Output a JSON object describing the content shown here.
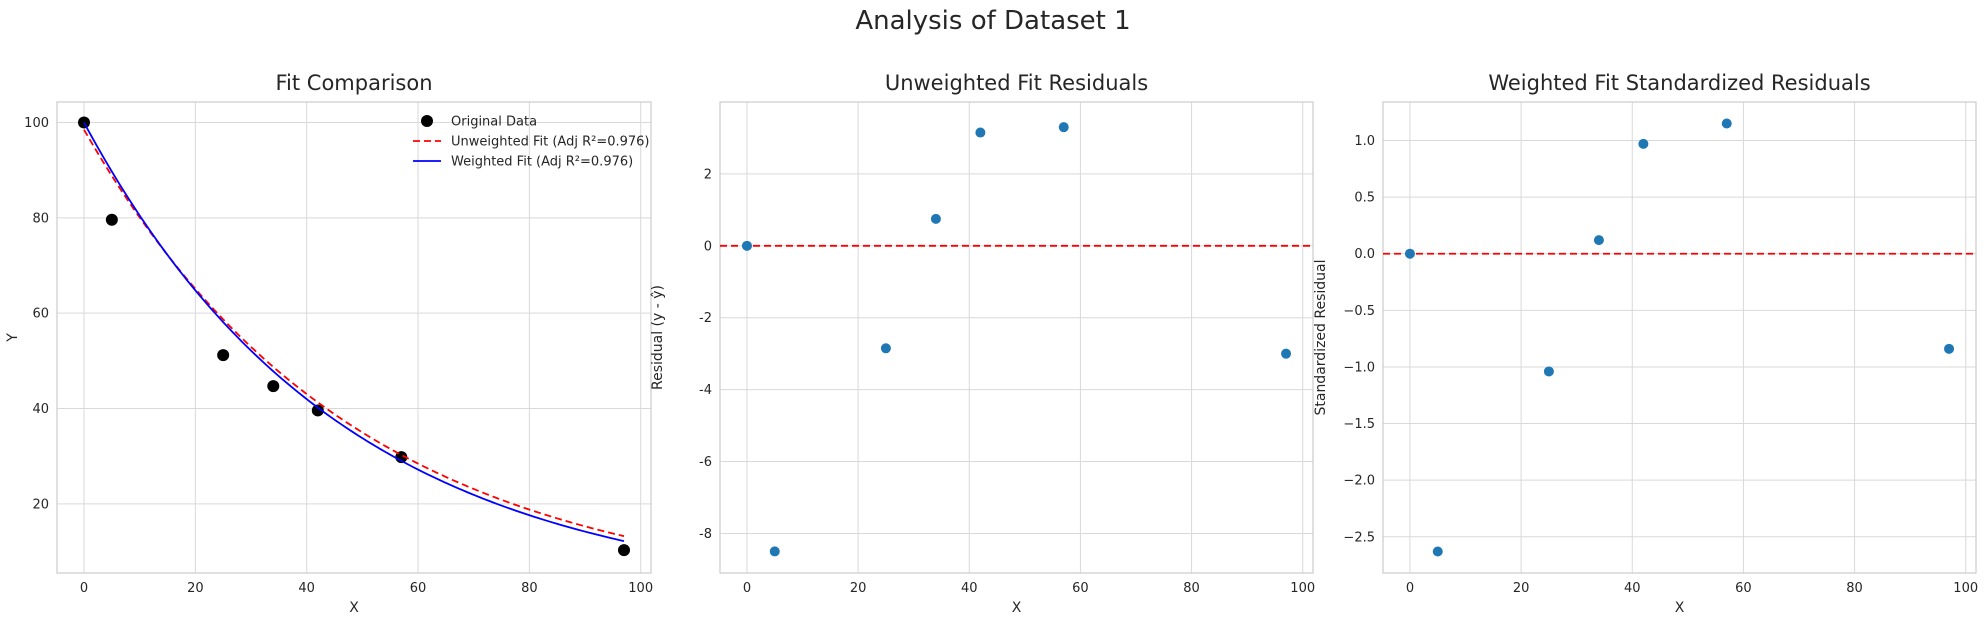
{
  "figure_title": "Analysis of Dataset 1",
  "chart_data": [
    {
      "type": "scatter",
      "title": "Fit Comparison",
      "xlabel": "X",
      "ylabel": "Y",
      "xlim": [
        -4.85,
        101.85
      ],
      "ylim": [
        5.5,
        104.3
      ],
      "xticks": [
        0,
        20,
        40,
        60,
        80,
        100
      ],
      "yticks": [
        20,
        40,
        60,
        80,
        100
      ],
      "grid": true,
      "legend_position": "top-right",
      "series": [
        {
          "name": "Original Data",
          "kind": "scatter",
          "color": "#000000",
          "x": [
            0,
            5,
            25,
            34,
            42,
            57,
            97
          ],
          "y": [
            100,
            79.6,
            51.2,
            44.7,
            39.6,
            29.8,
            10.3
          ]
        },
        {
          "name": "Unweighted Fit (Adj R²=0.976)",
          "kind": "line",
          "style": "dashed",
          "color": "#ff0000",
          "model": {
            "form": "a*exp(-b*x)",
            "a": 98.5,
            "b": 0.0207
          }
        },
        {
          "name": "Weighted Fit (Adj R²=0.976)",
          "kind": "line",
          "style": "solid",
          "color": "#0000ff",
          "model": {
            "form": "a*exp(-b*x)",
            "a": 100.0,
            "b": 0.0217
          }
        }
      ]
    },
    {
      "type": "scatter",
      "title": "Unweighted Fit Residuals",
      "xlabel": "X",
      "ylabel": "Residual (y - ŷ)",
      "xlim": [
        -4.85,
        101.85
      ],
      "ylim": [
        -9.1,
        4.0
      ],
      "xticks": [
        0,
        20,
        40,
        60,
        80,
        100
      ],
      "yticks": [
        -8,
        -6,
        -4,
        -2,
        0,
        2
      ],
      "grid": true,
      "reference_line": {
        "y": 0,
        "color": "#ff0000",
        "style": "dashed"
      },
      "series": [
        {
          "kind": "scatter",
          "color": "#1f77b4",
          "x": [
            0,
            5,
            25,
            34,
            42,
            57,
            97
          ],
          "y": [
            0.0,
            -8.5,
            -2.85,
            0.75,
            3.15,
            3.3,
            -3.0
          ]
        }
      ]
    },
    {
      "type": "scatter",
      "title": "Weighted Fit Standardized Residuals",
      "xlabel": "X",
      "ylabel": "Standardized Residual",
      "xlim": [
        -4.85,
        101.85
      ],
      "ylim": [
        -2.82,
        1.34
      ],
      "xticks": [
        0,
        20,
        40,
        60,
        80,
        100
      ],
      "yticks": [
        -2.5,
        -2.0,
        -1.5,
        -1.0,
        -0.5,
        0.0,
        0.5,
        1.0
      ],
      "ytick_labels": [
        "−2.5",
        "−2.0",
        "−1.5",
        "−1.0",
        "−0.5",
        "0.0",
        "0.5",
        "1.0"
      ],
      "grid": true,
      "reference_line": {
        "y": 0,
        "color": "#ff0000",
        "style": "dashed"
      },
      "series": [
        {
          "kind": "scatter",
          "color": "#1f77b4",
          "x": [
            0,
            5,
            25,
            34,
            42,
            57,
            97
          ],
          "y": [
            0.0,
            -2.63,
            -1.04,
            0.12,
            0.97,
            1.15,
            -0.84
          ]
        }
      ]
    }
  ]
}
